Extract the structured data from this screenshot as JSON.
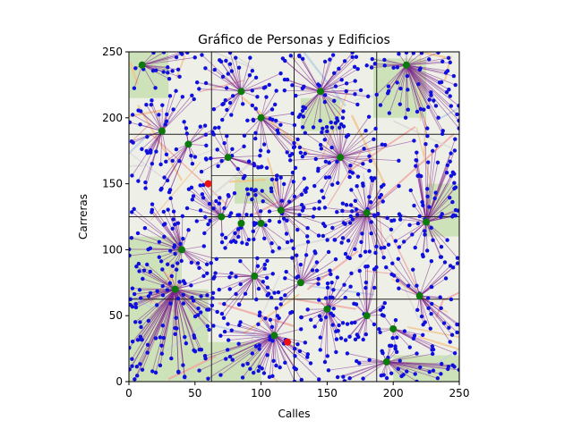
{
  "chart_data": {
    "type": "scatter",
    "title": "Gráfico de Personas y Edificios",
    "xlabel": "Calles",
    "ylabel": "Carreras",
    "xlim": [
      0,
      250
    ],
    "ylim": [
      0,
      250
    ],
    "xticks": [
      0,
      50,
      100,
      150,
      200,
      250
    ],
    "yticks": [
      0,
      50,
      100,
      150,
      200,
      250
    ],
    "xtick_labels": [
      "0",
      "50",
      "100",
      "150",
      "200",
      "250"
    ],
    "ytick_labels": [
      "0",
      "50",
      "100",
      "150",
      "200",
      "250"
    ],
    "background": "street map",
    "grid_lines_x": [
      62.5,
      125,
      187.5
    ],
    "grid_lines_y": [
      62.5,
      125,
      187.5
    ],
    "sub_grid_segments": [
      {
        "x1": 93.75,
        "y1": 62.5,
        "x2": 93.75,
        "y2": 187.5
      },
      {
        "x1": 62.5,
        "y1": 156.25,
        "x2": 125,
        "y2": 156.25
      },
      {
        "x1": 62.5,
        "y1": 93.75,
        "x2": 125,
        "y2": 93.75
      }
    ],
    "colors": {
      "people": "#1010dd",
      "buildings": "#0b7a0b",
      "links": "#7b1f8a",
      "red_points": "#ee1111",
      "block_lines": "#222222"
    },
    "series": [
      {
        "kind": "buildings",
        "points": [
          [
            10,
            240
          ],
          [
            25,
            190
          ],
          [
            85,
            220
          ],
          [
            100,
            200
          ],
          [
            145,
            220
          ],
          [
            210,
            240
          ],
          [
            45,
            180
          ],
          [
            75,
            170
          ],
          [
            160,
            170
          ],
          [
            180,
            128
          ],
          [
            70,
            125
          ],
          [
            85,
            120
          ],
          [
            100,
            120
          ],
          [
            115,
            130
          ],
          [
            40,
            100
          ],
          [
            35,
            70
          ],
          [
            95,
            80
          ],
          [
            130,
            75
          ],
          [
            225,
            121
          ],
          [
            220,
            65
          ],
          [
            150,
            55
          ],
          [
            180,
            50
          ],
          [
            110,
            35
          ],
          [
            200,
            40
          ],
          [
            195,
            15
          ]
        ]
      },
      {
        "kind": "highlighted",
        "points": [
          [
            60,
            150
          ],
          [
            120,
            30
          ]
        ]
      }
    ],
    "people_count": 1000,
    "links": "each person connected to nearest building"
  }
}
